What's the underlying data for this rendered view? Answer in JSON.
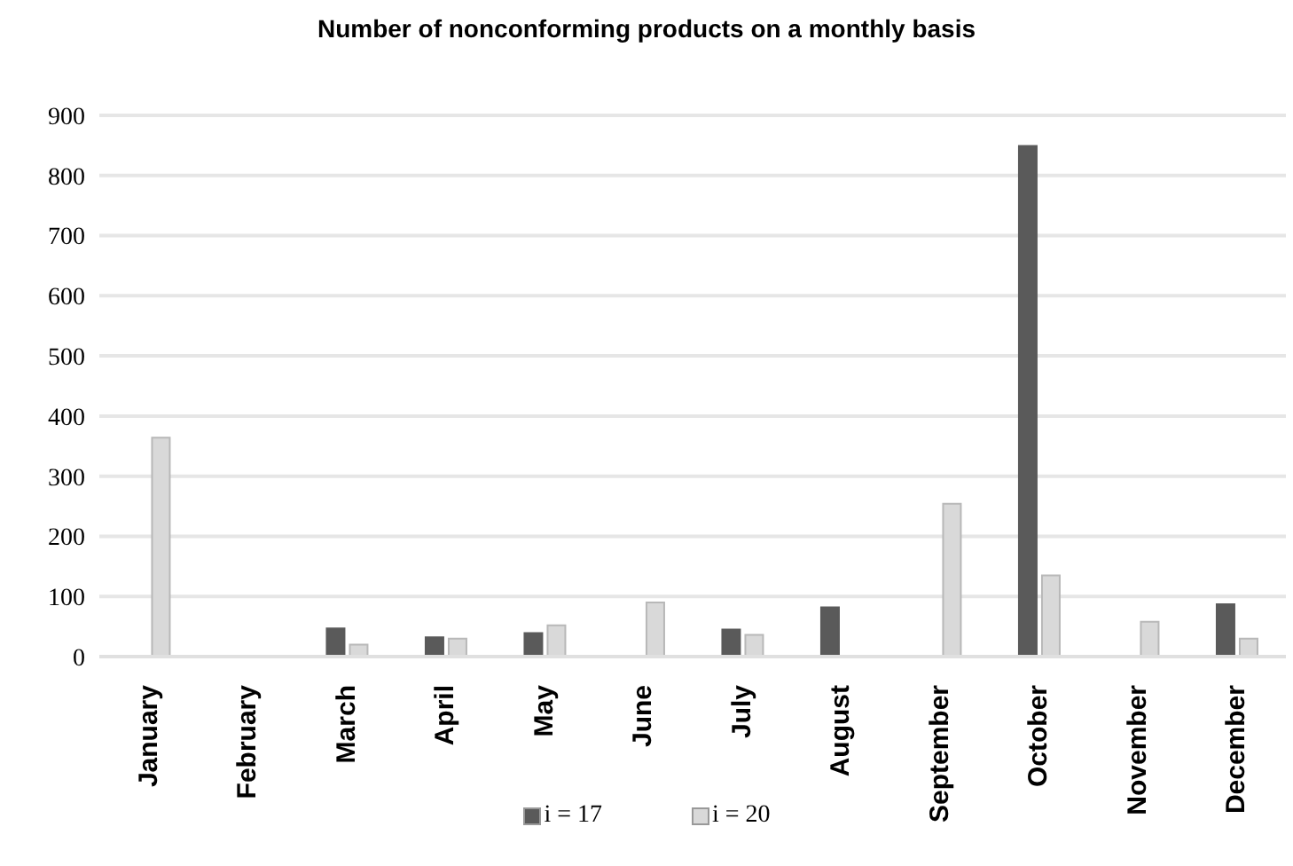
{
  "chart_data": {
    "type": "bar",
    "title": "Number of nonconforming products on a monthly basis",
    "categories": [
      "January",
      "February",
      "March",
      "April",
      "May",
      "June",
      "July",
      "August",
      "September",
      "October",
      "November",
      "December"
    ],
    "series": [
      {
        "name": "i = 17",
        "color": "#5a5a5a",
        "values": [
          null,
          null,
          47,
          32,
          39,
          null,
          45,
          82,
          null,
          849,
          null,
          87
        ]
      },
      {
        "name": "i = 20",
        "color": "#d9d9d9",
        "values": [
          364,
          null,
          20,
          30,
          52,
          90,
          36,
          null,
          254,
          135,
          58,
          30
        ]
      }
    ],
    "ylim": [
      0,
      900
    ],
    "yticks": [
      0,
      100,
      200,
      300,
      400,
      500,
      600,
      700,
      800,
      900
    ],
    "grid": "y",
    "legend": "bottom"
  }
}
